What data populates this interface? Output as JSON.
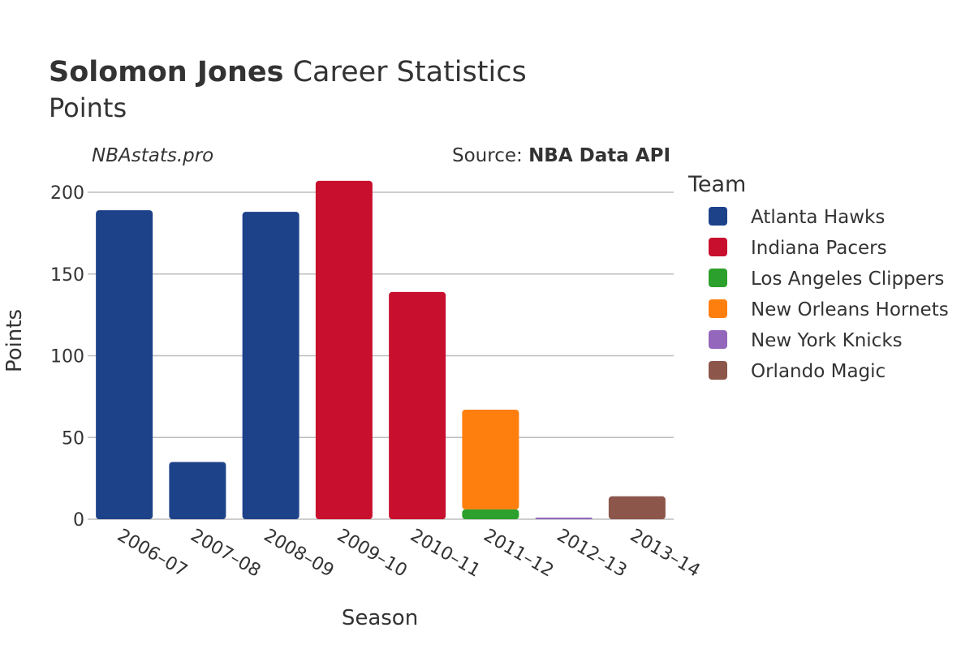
{
  "header": {
    "player_name": "Solomon Jones",
    "title_rest": " Career Statistics",
    "subtitle": "Points",
    "watermark": "NBAstats.pro",
    "source_prefix": "Source: ",
    "source_name": "NBA Data API"
  },
  "legend": {
    "title": "Team"
  },
  "colors": {
    "Atlanta Hawks": "#1d428a",
    "Indiana Pacers": "#c8102e",
    "Los Angeles Clippers": "#2ca02c",
    "New Orleans Hornets": "#ff7f0e",
    "New York Knicks": "#9467bd",
    "Orlando Magic": "#8c564b"
  },
  "chart_data": {
    "type": "bar",
    "stacked": true,
    "title": "Solomon Jones Career Statistics",
    "subtitle": "Points",
    "xlabel": "Season",
    "ylabel": "Points",
    "ylim": [
      0,
      210
    ],
    "yticks": [
      0,
      50,
      100,
      150,
      200
    ],
    "grid": true,
    "legend_position": "right",
    "categories": [
      "2006–07",
      "2007–08",
      "2008–09",
      "2009–10",
      "2010–11",
      "2011–12",
      "2012–13",
      "2013–14"
    ],
    "series": [
      {
        "name": "Atlanta Hawks",
        "values": [
          189,
          35,
          188,
          0,
          0,
          0,
          0,
          0
        ]
      },
      {
        "name": "Indiana Pacers",
        "values": [
          0,
          0,
          0,
          207,
          139,
          0,
          0,
          0
        ]
      },
      {
        "name": "Los Angeles Clippers",
        "values": [
          0,
          0,
          0,
          0,
          0,
          6,
          0,
          0
        ]
      },
      {
        "name": "New Orleans Hornets",
        "values": [
          0,
          0,
          0,
          0,
          0,
          61,
          0,
          0
        ]
      },
      {
        "name": "New York Knicks",
        "values": [
          0,
          0,
          0,
          0,
          0,
          0,
          1,
          0
        ]
      },
      {
        "name": "Orlando Magic",
        "values": [
          0,
          0,
          0,
          0,
          0,
          0,
          0,
          14
        ]
      }
    ]
  }
}
